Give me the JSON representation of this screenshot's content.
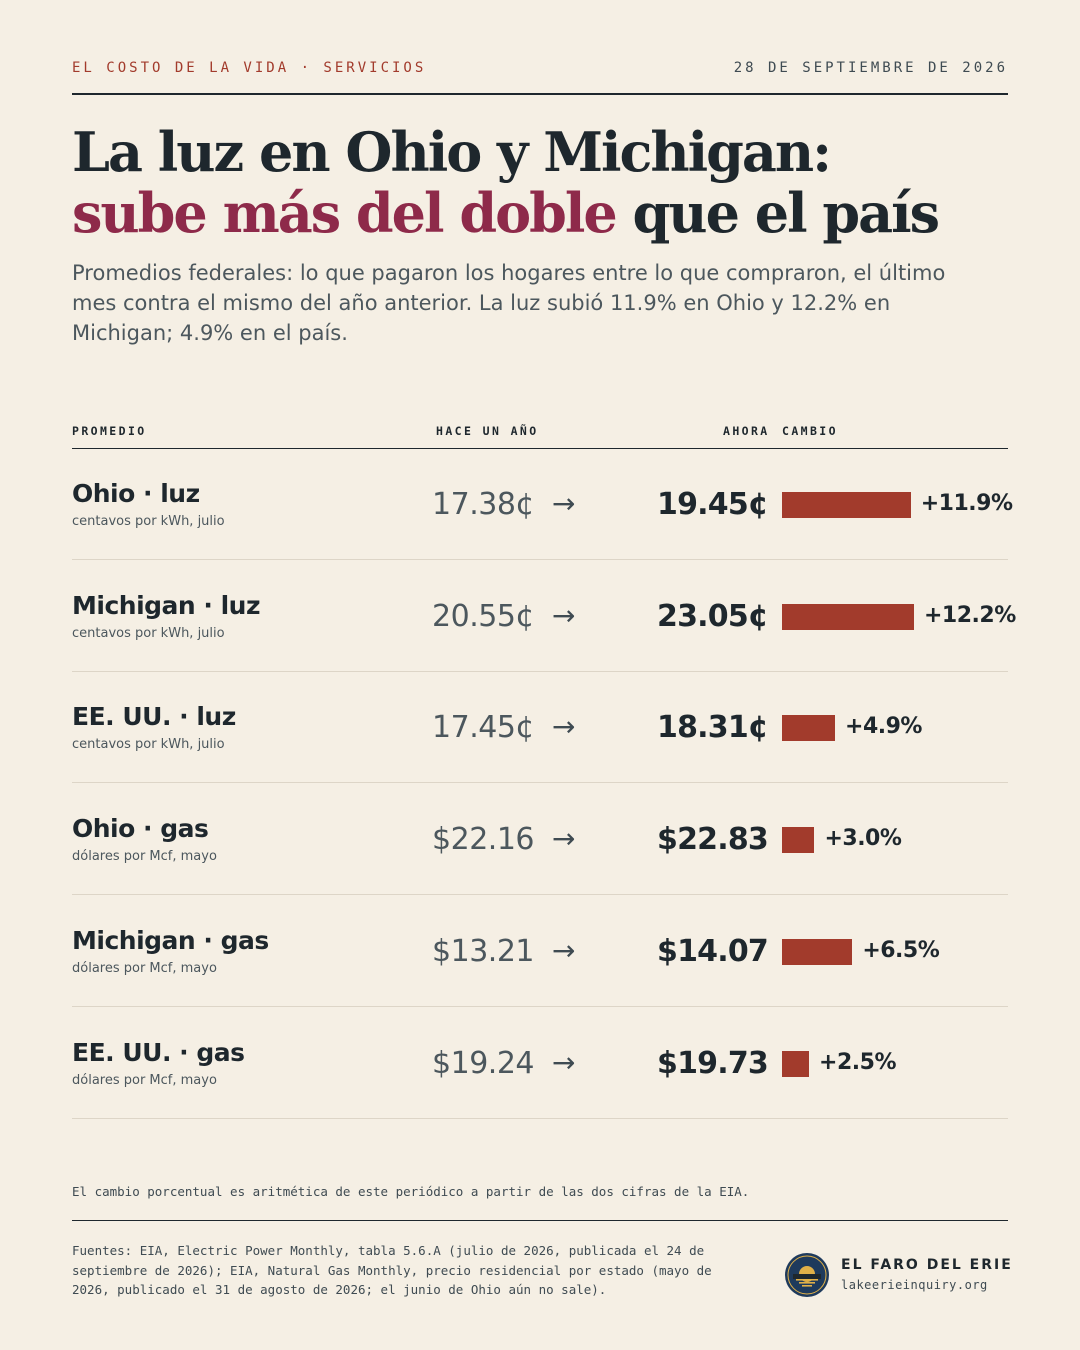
{
  "header": {
    "kicker": "EL COSTO DE LA VIDA · SERVICIOS",
    "date": "28 DE SEPTIEMBRE DE 2026"
  },
  "headline": {
    "line1": "La luz en Ohio y Michigan:",
    "line2_accent": "sube más del doble",
    "line2_rest": " que el país"
  },
  "dek": "Promedios federales: lo que pagaron los hogares entre lo que compraron, el último mes contra el mismo del año anterior. La luz subió 11.9% en Ohio y 12.2% en Michigan; 4.9% en el país.",
  "table": {
    "col_promedio": "PROMEDIO",
    "col_hace": "HACE UN AÑO",
    "col_ahora": "AHORA",
    "col_cambio": "CAMBIO"
  },
  "chart_data": {
    "type": "table",
    "columns": [
      "PROMEDIO",
      "HACE UN AÑO",
      "AHORA",
      "CAMBIO"
    ],
    "rows": [
      {
        "label": "Ohio · luz",
        "unit": "centavos por kWh, julio",
        "prev": "17.38¢",
        "curr": "19.45¢",
        "change": "+11.9%",
        "change_value": 11.9
      },
      {
        "label": "Michigan · luz",
        "unit": "centavos por kWh, julio",
        "prev": "20.55¢",
        "curr": "23.05¢",
        "change": "+12.2%",
        "change_value": 12.2
      },
      {
        "label": "EE. UU. · luz",
        "unit": "centavos por kWh, julio",
        "prev": "17.45¢",
        "curr": "18.31¢",
        "change": "+4.9%",
        "change_value": 4.9
      },
      {
        "label": "Ohio · gas",
        "unit": "dólares por Mcf, mayo",
        "prev": "$22.16",
        "curr": "$22.83",
        "change": "+3.0%",
        "change_value": 3.0
      },
      {
        "label": "Michigan · gas",
        "unit": "dólares por Mcf, mayo",
        "prev": "$13.21",
        "curr": "$14.07",
        "change": "+6.5%",
        "change_value": 6.5
      },
      {
        "label": "EE. UU. · gas",
        "unit": "dólares por Mcf, mayo",
        "prev": "$19.24",
        "curr": "$19.73",
        "change": "+2.5%",
        "change_value": 2.5
      }
    ],
    "arrow": "→",
    "bar_color": "#a23b2c"
  },
  "note": "El cambio porcentual es aritmética de este periódico a partir de las dos cifras de la EIA.",
  "sources": "Fuentes: EIA, Electric Power Monthly, tabla 5.6.A (julio de 2026, publicada el 24 de septiembre de 2026); EIA, Natural Gas Monthly, precio residencial por estado (mayo de 2026, publicado el 31 de agosto de 2026; el junio de Ohio aún no sale).",
  "brand": {
    "name": "EL FARO DEL ERIE",
    "url": "lakeerieinquiry.org"
  },
  "colors": {
    "background": "#f5efe4",
    "accent": "#8e2a4a",
    "bar": "#a23b2c",
    "ink": "#1e272d"
  }
}
